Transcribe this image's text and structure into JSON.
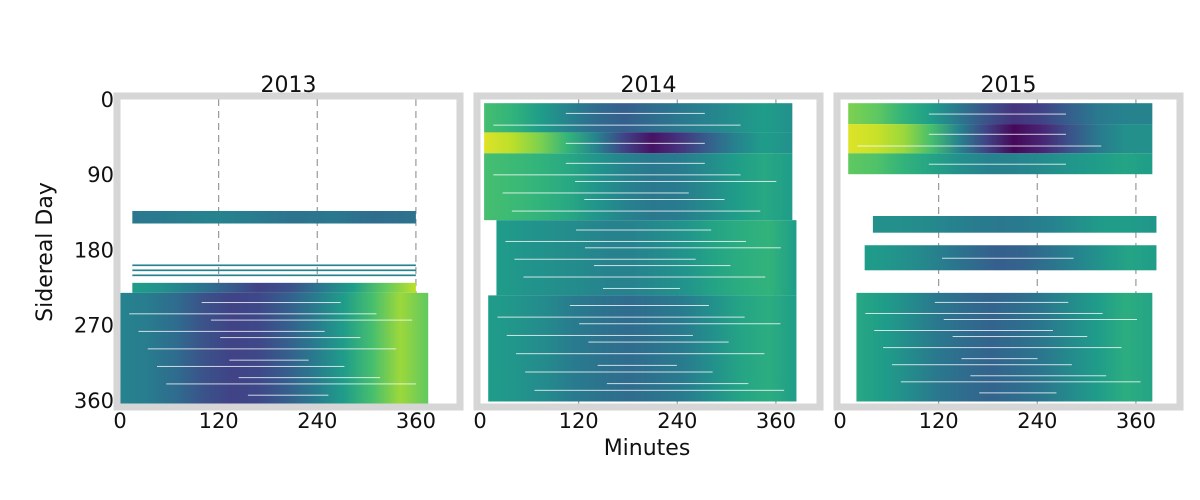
{
  "chart_data": {
    "type": "heatmap",
    "xlabel": "Minutes",
    "ylabel": "Sidereal Day",
    "colormap": "viridis",
    "frame_color": "#d6d6d6",
    "guide_color": "#999999",
    "x_ticks": [
      0,
      120,
      240,
      360
    ],
    "y_ticks": [
      0,
      90,
      180,
      270,
      360
    ],
    "xlim": [
      0,
      410
    ],
    "ylim": [
      0,
      365
    ],
    "guide_lines_x": [
      120,
      240,
      360
    ],
    "panels": [
      {
        "title": "2013",
        "blocks": [
          {
            "day_start": 134,
            "day_end": 149,
            "min_start": 15,
            "min_end": 360,
            "values": [
              0.4,
              0.42,
              0.45,
              0.42,
              0.38,
              0.4,
              0.35,
              0.38
            ]
          },
          {
            "day_start": 198,
            "day_end": 200,
            "min_start": 15,
            "min_end": 360,
            "values": [
              0.45,
              0.45,
              0.45
            ]
          },
          {
            "day_start": 204,
            "day_end": 206,
            "min_start": 15,
            "min_end": 360,
            "values": [
              0.45,
              0.45,
              0.45
            ]
          },
          {
            "day_start": 210,
            "day_end": 212,
            "min_start": 15,
            "min_end": 360,
            "values": [
              0.45,
              0.45,
              0.45
            ]
          },
          {
            "day_start": 220,
            "day_end": 232,
            "min_start": 15,
            "min_end": 360,
            "values": [
              0.55,
              0.5,
              0.4,
              0.3,
              0.2,
              0.25,
              0.4,
              0.55,
              0.75,
              0.9
            ]
          },
          {
            "day_start": 232,
            "day_end": 365,
            "min_start": 0,
            "min_end": 375,
            "values": [
              0.45,
              0.42,
              0.35,
              0.25,
              0.2,
              0.22,
              0.3,
              0.42,
              0.55,
              0.7,
              0.85,
              0.75
            ]
          }
        ]
      },
      {
        "title": "2014",
        "blocks": [
          {
            "day_start": 5,
            "day_end": 40,
            "min_start": 5,
            "min_end": 380,
            "values": [
              0.7,
              0.65,
              0.55,
              0.45,
              0.35,
              0.3,
              0.35,
              0.4,
              0.45,
              0.5,
              0.55,
              0.5
            ]
          },
          {
            "day_start": 40,
            "day_end": 65,
            "min_start": 5,
            "min_end": 380,
            "values": [
              0.95,
              0.9,
              0.8,
              0.65,
              0.45,
              0.2,
              0.05,
              0.15,
              0.3,
              0.45,
              0.55,
              0.5
            ]
          },
          {
            "day_start": 65,
            "day_end": 145,
            "min_start": 5,
            "min_end": 380,
            "values": [
              0.7,
              0.68,
              0.65,
              0.6,
              0.52,
              0.45,
              0.4,
              0.42,
              0.48,
              0.55,
              0.6,
              0.55
            ]
          },
          {
            "day_start": 145,
            "day_end": 235,
            "min_start": 20,
            "min_end": 385,
            "values": [
              0.55,
              0.52,
              0.5,
              0.48,
              0.45,
              0.45,
              0.48,
              0.52,
              0.58,
              0.62,
              0.65,
              0.55
            ]
          },
          {
            "day_start": 235,
            "day_end": 362,
            "min_start": 10,
            "min_end": 385,
            "values": [
              0.55,
              0.52,
              0.48,
              0.42,
              0.38,
              0.35,
              0.38,
              0.42,
              0.5,
              0.58,
              0.62,
              0.55
            ]
          }
        ]
      },
      {
        "title": "2015",
        "blocks": [
          {
            "day_start": 5,
            "day_end": 30,
            "min_start": 10,
            "min_end": 380,
            "values": [
              0.8,
              0.75,
              0.65,
              0.55,
              0.4,
              0.25,
              0.15,
              0.2,
              0.3,
              0.4,
              0.45,
              0.45
            ]
          },
          {
            "day_start": 30,
            "day_end": 65,
            "min_start": 10,
            "min_end": 380,
            "values": [
              0.95,
              0.92,
              0.85,
              0.7,
              0.45,
              0.2,
              0.02,
              0.1,
              0.25,
              0.4,
              0.5,
              0.5
            ]
          },
          {
            "day_start": 65,
            "day_end": 90,
            "min_start": 10,
            "min_end": 380,
            "values": [
              0.75,
              0.72,
              0.65,
              0.58,
              0.5,
              0.45,
              0.45,
              0.48,
              0.52,
              0.55,
              0.58,
              0.55
            ]
          },
          {
            "day_start": 140,
            "day_end": 160,
            "min_start": 40,
            "min_end": 385,
            "values": [
              0.5,
              0.5,
              0.48,
              0.45,
              0.42,
              0.4,
              0.42,
              0.45,
              0.5,
              0.55,
              0.55,
              0.52
            ]
          },
          {
            "day_start": 175,
            "day_end": 205,
            "min_start": 30,
            "min_end": 385,
            "values": [
              0.55,
              0.52,
              0.48,
              0.42,
              0.35,
              0.3,
              0.32,
              0.38,
              0.45,
              0.52,
              0.58,
              0.55
            ]
          },
          {
            "day_start": 232,
            "day_end": 362,
            "min_start": 20,
            "min_end": 380,
            "values": [
              0.6,
              0.55,
              0.48,
              0.4,
              0.35,
              0.32,
              0.35,
              0.4,
              0.48,
              0.55,
              0.62,
              0.58
            ]
          }
        ]
      }
    ]
  }
}
